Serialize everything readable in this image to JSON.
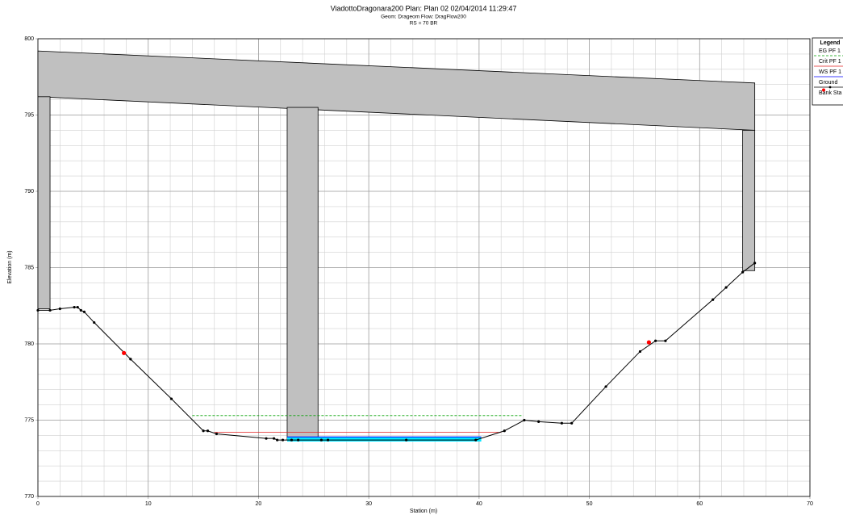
{
  "chart_data": {
    "type": "cross-section",
    "title": "ViadottoDragonara200      Plan: Plan 02    02/04/2014  11:29:47",
    "subtitle": [
      "Geom: Drageom    Flow: DragFlow200",
      "RS = 70      BR"
    ],
    "xlabel": "Station (m)",
    "ylabel": "Elevation (m)",
    "legend_title": "Legend",
    "xlim": [
      0,
      70
    ],
    "ylim": [
      770,
      800
    ],
    "xticks": [
      0,
      10,
      20,
      30,
      40,
      50,
      60,
      70
    ],
    "yticks": [
      770,
      775,
      780,
      785,
      790,
      795,
      800
    ],
    "grid": true,
    "grid_step_x": 2,
    "grid_step_y": 1,
    "deck": {
      "color": "#c0c0c0",
      "x": [
        0,
        65
      ],
      "high": [
        799.2,
        797.1
      ],
      "low": [
        796.2,
        794.0
      ]
    },
    "supports": [
      {
        "x": [
          0,
          1.1
        ],
        "bottom": 782.3,
        "top": 796.2
      },
      {
        "x": [
          22.6,
          25.4
        ],
        "bottom": 773.7,
        "top": 795.5
      },
      {
        "x": [
          63.9,
          65
        ],
        "bottom": 784.8,
        "top": 794.0
      }
    ],
    "series": [
      {
        "name": "EG PF 1",
        "color": "#00a000",
        "style": "dashed",
        "x": [
          14,
          44
        ],
        "values": [
          775.3,
          775.3
        ]
      },
      {
        "name": "Crit PF 1",
        "color": "#e02020",
        "style": "line",
        "x": [
          16,
          42
        ],
        "values": [
          774.2,
          774.2
        ]
      },
      {
        "name": "WS PF 1",
        "color": "#0000ff",
        "fill": "#00e5ff",
        "style": "water",
        "x": [
          22.6,
          40.2
        ],
        "values": [
          773.9,
          773.9
        ],
        "bottom": 773.6
      },
      {
        "name": "Ground",
        "color": "#000000",
        "style": "ground",
        "x": [
          0,
          1.1,
          2.0,
          3.3,
          3.6,
          3.9,
          4.2,
          5.1,
          8.4,
          12.1,
          15.0,
          15.4,
          16.2,
          20.7,
          21.4,
          21.7,
          22.2,
          23.0,
          23.6,
          25.7,
          26.3,
          33.4,
          39.7,
          42.3,
          44.1,
          45.4,
          47.5,
          48.4,
          51.5,
          54.6,
          56.0,
          56.9,
          61.2,
          62.4,
          63.9,
          65.0
        ],
        "values": [
          782.2,
          782.2,
          782.3,
          782.4,
          782.4,
          782.2,
          782.1,
          781.4,
          779.0,
          776.4,
          774.3,
          774.3,
          774.1,
          773.8,
          773.8,
          773.7,
          773.7,
          773.7,
          773.7,
          773.7,
          773.7,
          773.7,
          773.7,
          774.3,
          775.0,
          774.9,
          774.8,
          774.8,
          777.2,
          779.5,
          780.2,
          780.2,
          782.9,
          783.7,
          784.7,
          785.3
        ]
      },
      {
        "name": "Bank Sta",
        "color": "#ff0000",
        "style": "marker",
        "x": [
          7.8,
          55.4
        ],
        "values": [
          779.4,
          780.1
        ]
      }
    ]
  }
}
